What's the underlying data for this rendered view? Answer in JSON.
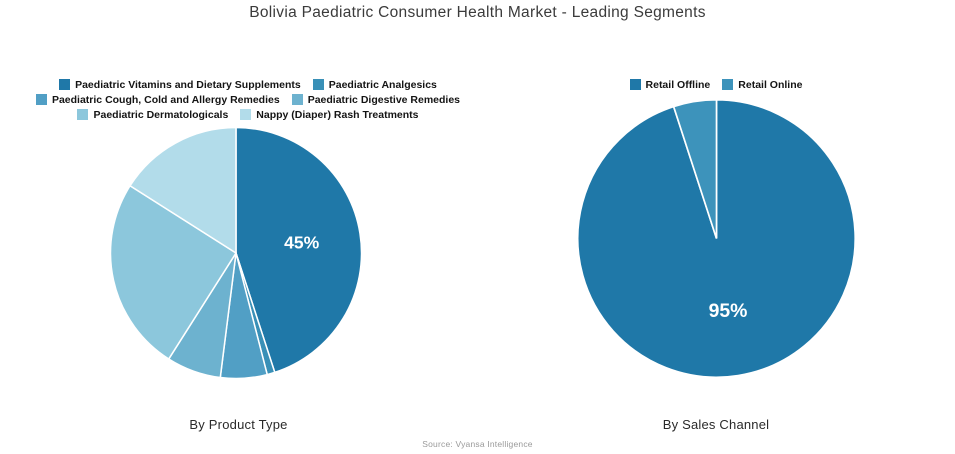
{
  "title": "Bolivia Paediatric Consumer Health Market - Leading Segments",
  "source": "Source: Vyansa Intelligence",
  "chart_data": [
    {
      "type": "pie",
      "title": "By Product Type",
      "legend_position": "top",
      "start_angle_deg": 0,
      "direction": "clockwise",
      "label_color": "#ffffff",
      "slices": [
        {
          "name": "Paediatric Vitamins and Dietary Supplements",
          "value": 45,
          "color": "#1f78a8",
          "label": "45%"
        },
        {
          "name": "Paediatric Analgesics",
          "value": 1,
          "color": "#3990b7",
          "label": ""
        },
        {
          "name": "Paediatric Cough, Cold and Allergy Remedies",
          "value": 6,
          "color": "#519fc5",
          "label": ""
        },
        {
          "name": "Paediatric Digestive Remedies",
          "value": 7,
          "color": "#6db2cf",
          "label": ""
        },
        {
          "name": "Paediatric Dermatologicals",
          "value": 25,
          "color": "#8cc7dc",
          "label": ""
        },
        {
          "name": "Nappy (Diaper) Rash Treatments",
          "value": 16,
          "color": "#b2dcea",
          "label": ""
        }
      ]
    },
    {
      "type": "pie",
      "title": "By Sales Channel",
      "legend_position": "top",
      "start_angle_deg": 0,
      "direction": "clockwise",
      "label_color": "#ffffff",
      "slices": [
        {
          "name": "Retail Offline",
          "value": 95,
          "color": "#1f78a8",
          "label": "95%"
        },
        {
          "name": "Retail Online",
          "value": 5,
          "color": "#3d93bb",
          "label": ""
        }
      ]
    }
  ]
}
